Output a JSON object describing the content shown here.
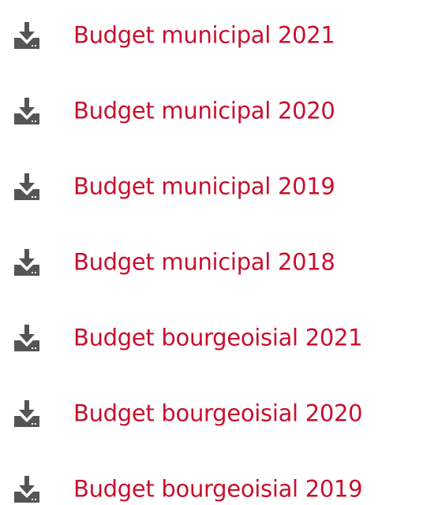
{
  "links": [
    {
      "label": "Budget municipal 2021"
    },
    {
      "label": "Budget municipal 2020"
    },
    {
      "label": "Budget municipal 2019"
    },
    {
      "label": "Budget municipal 2018"
    },
    {
      "label": "Budget bourgeoisial 2021"
    },
    {
      "label": "Budget bourgeoisial 2020"
    },
    {
      "label": "Budget bourgeoisial 2019"
    }
  ]
}
